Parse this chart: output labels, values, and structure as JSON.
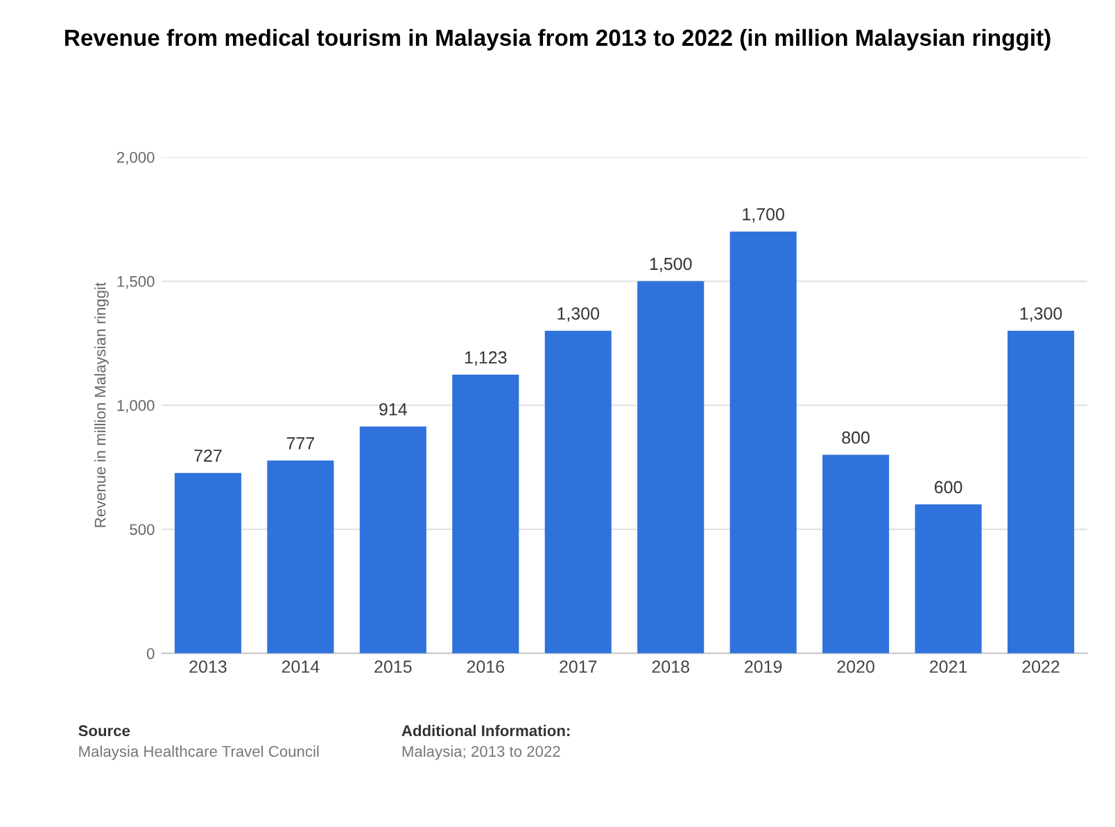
{
  "chart_data": {
    "type": "bar",
    "title": "Revenue from medical tourism in Malaysia from 2013 to 2022 (in million Malaysian ringgit)",
    "ylabel": "Revenue in million Malaysian ringgit",
    "categories": [
      "2013",
      "2014",
      "2015",
      "2016",
      "2017",
      "2018",
      "2019",
      "2020",
      "2021",
      "2022"
    ],
    "values": [
      727,
      777,
      914,
      1123,
      1300,
      1500,
      1700,
      800,
      600,
      1300
    ],
    "value_labels": [
      "727",
      "777",
      "914",
      "1,123",
      "1,300",
      "1,500",
      "1,700",
      "800",
      "600",
      "1,300"
    ],
    "color": "#2f72dc",
    "ylim": [
      0,
      2000
    ],
    "yticks": [
      0,
      500,
      {
        "value": 1000,
        "label": "1,000"
      },
      {
        "value": 1500,
        "label": "1,500"
      },
      {
        "value": 2000,
        "label": "2,000"
      }
    ],
    "grid": "y",
    "annotations": [
      "Source",
      "Malaysia Healthcare Travel Council",
      "Additional Information:",
      "Malaysia; 2013 to 2022"
    ]
  }
}
